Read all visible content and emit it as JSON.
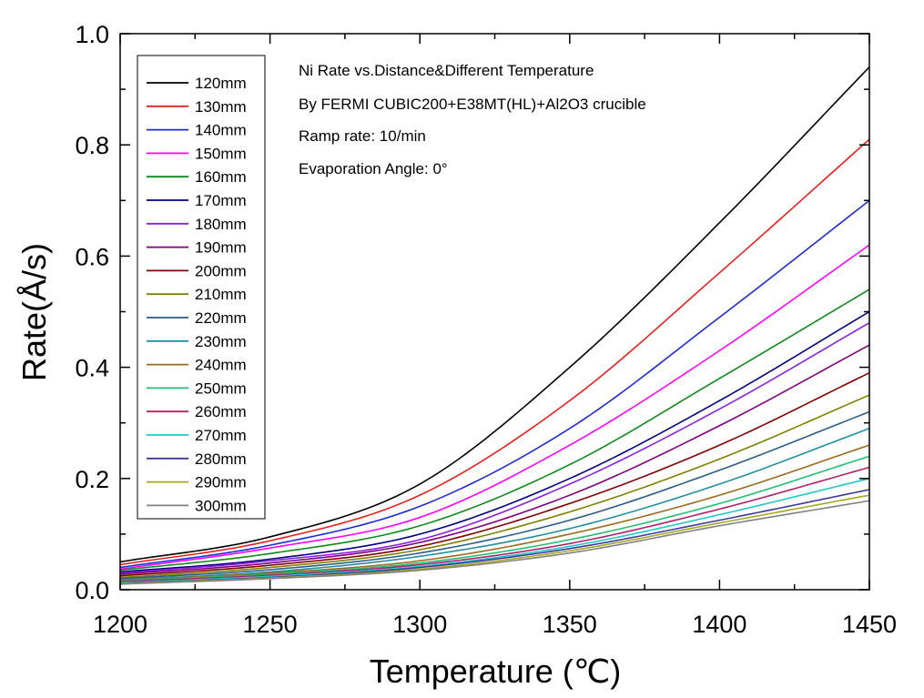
{
  "chart_data": {
    "type": "line",
    "xlabel": "Temperature (℃)",
    "ylabel": "Rate(Å/s)",
    "xlim": [
      1200,
      1450
    ],
    "ylim": [
      0,
      1.0
    ],
    "xticks": [
      "1200",
      "1250",
      "1300",
      "1350",
      "1400",
      "1450"
    ],
    "yticks": [
      "0.0",
      "0.2",
      "0.4",
      "0.6",
      "0.8",
      "1.0"
    ],
    "x": [
      1200,
      1250,
      1300,
      1350,
      1400,
      1450
    ],
    "grid": false,
    "legend_position": "top-left",
    "annotations": [
      "Ni Rate vs.Distance&Different Temperature",
      "By FERMI CUBIC200+E38MT(HL)+Al2O3 crucible",
      "Ramp rate:   10/min",
      "Evaporation Angle:  0°"
    ],
    "series": [
      {
        "name": "120mm",
        "color": "#000000",
        "values": [
          0.05,
          0.095,
          0.19,
          0.4,
          0.66,
          0.94
        ]
      },
      {
        "name": "130mm",
        "color": "#e8201c",
        "values": [
          0.045,
          0.088,
          0.17,
          0.34,
          0.57,
          0.81
        ]
      },
      {
        "name": "140mm",
        "color": "#1c2bd4",
        "values": [
          0.04,
          0.08,
          0.15,
          0.29,
          0.49,
          0.7
        ]
      },
      {
        "name": "150mm",
        "color": "#ff00ff",
        "values": [
          0.037,
          0.075,
          0.13,
          0.26,
          0.43,
          0.62
        ]
      },
      {
        "name": "160mm",
        "color": "#0d8a1a",
        "values": [
          0.035,
          0.065,
          0.115,
          0.225,
          0.38,
          0.54
        ]
      },
      {
        "name": "170mm",
        "color": "#000080",
        "values": [
          0.032,
          0.055,
          0.1,
          0.2,
          0.34,
          0.5
        ]
      },
      {
        "name": "180mm",
        "color": "#8b20e0",
        "values": [
          0.03,
          0.052,
          0.09,
          0.19,
          0.325,
          0.48
        ]
      },
      {
        "name": "190mm",
        "color": "#800080",
        "values": [
          0.028,
          0.048,
          0.085,
          0.17,
          0.295,
          0.44
        ]
      },
      {
        "name": "200mm",
        "color": "#800000",
        "values": [
          0.025,
          0.044,
          0.078,
          0.155,
          0.26,
          0.39
        ]
      },
      {
        "name": "210mm",
        "color": "#808000",
        "values": [
          0.022,
          0.04,
          0.072,
          0.14,
          0.235,
          0.35
        ]
      },
      {
        "name": "220mm",
        "color": "#2a5d8a",
        "values": [
          0.02,
          0.036,
          0.066,
          0.125,
          0.215,
          0.32
        ]
      },
      {
        "name": "230mm",
        "color": "#208fa3",
        "values": [
          0.018,
          0.032,
          0.06,
          0.11,
          0.19,
          0.29
        ]
      },
      {
        "name": "240mm",
        "color": "#9c6a1c",
        "values": [
          0.017,
          0.03,
          0.052,
          0.1,
          0.17,
          0.26
        ]
      },
      {
        "name": "250mm",
        "color": "#20c070",
        "values": [
          0.016,
          0.028,
          0.048,
          0.09,
          0.155,
          0.24
        ]
      },
      {
        "name": "260mm",
        "color": "#b0206e",
        "values": [
          0.015,
          0.026,
          0.045,
          0.083,
          0.145,
          0.22
        ]
      },
      {
        "name": "270mm",
        "color": "#20c8c8",
        "values": [
          0.013,
          0.024,
          0.042,
          0.078,
          0.135,
          0.2
        ]
      },
      {
        "name": "280mm",
        "color": "#3a3a9c",
        "values": [
          0.012,
          0.022,
          0.04,
          0.074,
          0.125,
          0.18
        ]
      },
      {
        "name": "290mm",
        "color": "#a8a820",
        "values": [
          0.011,
          0.021,
          0.037,
          0.07,
          0.12,
          0.17
        ]
      },
      {
        "name": "300mm",
        "color": "#808080",
        "values": [
          0.01,
          0.02,
          0.035,
          0.066,
          0.115,
          0.16
        ]
      }
    ]
  }
}
